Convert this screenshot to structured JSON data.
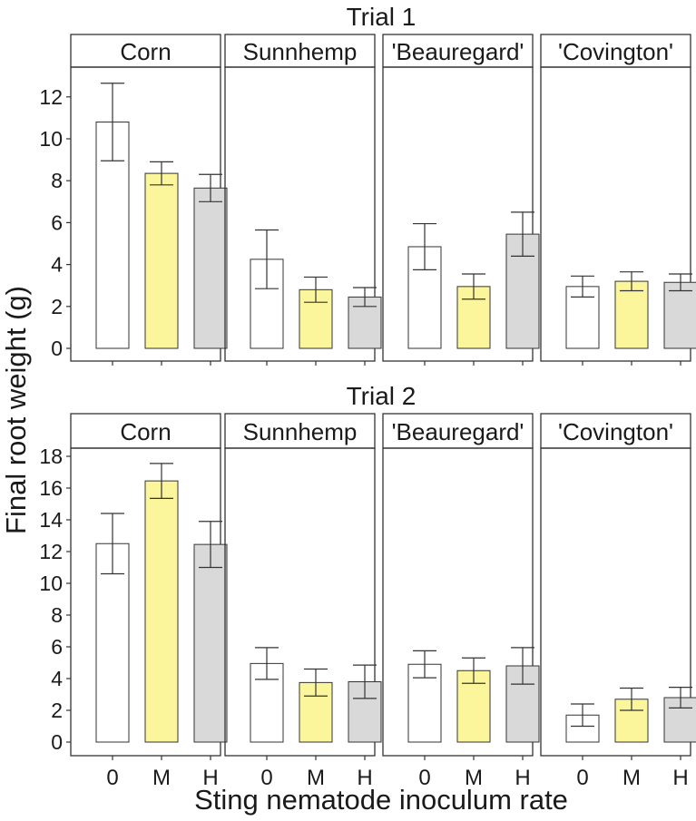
{
  "figure": {
    "ylabel": "Final root weight (g)",
    "xlabel": "Sting nematode inoculum rate"
  },
  "colors": {
    "bar_fills": [
      "#ffffff",
      "#fbf59b",
      "#d9d9d9"
    ],
    "strip_fill": "#ffffff",
    "stroke": "#333333"
  },
  "chart_data": [
    {
      "type": "bar",
      "title": "Trial 1",
      "categories": [
        "0",
        "M",
        "H"
      ],
      "ylim": [
        0,
        13.3
      ],
      "yticks": [
        0,
        2,
        4,
        6,
        8,
        10,
        12
      ],
      "panels": [
        {
          "name": "Corn",
          "values": [
            10.8,
            8.35,
            7.65
          ],
          "errors": [
            1.85,
            0.55,
            0.65
          ]
        },
        {
          "name": "Sunnhemp",
          "values": [
            4.25,
            2.8,
            2.45
          ],
          "errors": [
            1.4,
            0.6,
            0.45
          ]
        },
        {
          "name": "'Beauregard'",
          "values": [
            4.85,
            2.95,
            5.45
          ],
          "errors": [
            1.1,
            0.6,
            1.05
          ]
        },
        {
          "name": "'Covington'",
          "values": [
            2.95,
            3.2,
            3.15
          ],
          "errors": [
            0.5,
            0.45,
            0.4
          ]
        }
      ]
    },
    {
      "type": "bar",
      "title": "Trial 2",
      "categories": [
        "0",
        "M",
        "H"
      ],
      "ylim": [
        0,
        18.5
      ],
      "yticks": [
        0,
        2,
        4,
        6,
        8,
        10,
        12,
        14,
        16,
        18
      ],
      "panels": [
        {
          "name": "Corn",
          "values": [
            12.5,
            16.45,
            12.45
          ],
          "errors": [
            1.9,
            1.1,
            1.45
          ]
        },
        {
          "name": "Sunnhemp",
          "values": [
            4.95,
            3.75,
            3.8
          ],
          "errors": [
            1.0,
            0.85,
            1.05
          ]
        },
        {
          "name": "'Beauregard'",
          "values": [
            4.9,
            4.5,
            4.8
          ],
          "errors": [
            0.85,
            0.8,
            1.15
          ]
        },
        {
          "name": "'Covington'",
          "values": [
            1.7,
            2.7,
            2.8
          ],
          "errors": [
            0.7,
            0.7,
            0.65
          ]
        }
      ]
    }
  ]
}
